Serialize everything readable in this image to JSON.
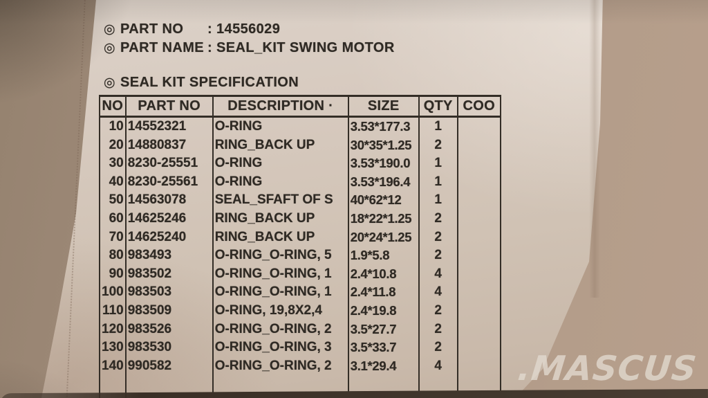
{
  "photo": {
    "watermark": ".MASCUS",
    "colors": {
      "backdrop": "#ab9584",
      "backdrop_dark_corner": "#6e5f52",
      "bag": "#d7cabf",
      "ink": "#2f2a24",
      "bottom_edge": "#3a2f26",
      "watermark_color": "#e1dacf"
    }
  },
  "label": {
    "part_no_field": {
      "bullet": "◎",
      "name": "PART NO",
      "colon": ":",
      "value": "14556029"
    },
    "part_name_field": {
      "bullet": "◎",
      "name": "PART NAME",
      "colon": ":",
      "value": "SEAL_KIT SWING MOTOR"
    },
    "section": {
      "bullet": "◎",
      "title": "SEAL KIT SPECIFICATION"
    },
    "table": {
      "headers": {
        "no": "NO",
        "part_no": "PART NO",
        "description": "DESCRIPTION ·",
        "size": "SIZE",
        "qty": "QTY",
        "coo": "COO"
      },
      "rows": [
        {
          "no": "10",
          "part_no": "14552321",
          "description": "O-RING",
          "size": "3.53*177.3",
          "qty": "1",
          "coo": ""
        },
        {
          "no": "20",
          "part_no": "14880837",
          "description": "RING_BACK UP",
          "size": "30*35*1.25",
          "qty": "2",
          "coo": ""
        },
        {
          "no": "30",
          "part_no": "8230-25551",
          "description": "O-RING",
          "size": "3.53*190.0",
          "qty": "1",
          "coo": ""
        },
        {
          "no": "40",
          "part_no": "8230-25561",
          "description": "O-RING",
          "size": "3.53*196.4",
          "qty": "1",
          "coo": ""
        },
        {
          "no": "50",
          "part_no": "14563078",
          "description": "SEAL_SFAFT OF S",
          "size": "40*62*12",
          "qty": "1",
          "coo": ""
        },
        {
          "no": "60",
          "part_no": "14625246",
          "description": "RING_BACK UP",
          "size": "18*22*1.25",
          "qty": "2",
          "coo": ""
        },
        {
          "no": "70",
          "part_no": "14625240",
          "description": "RING_BACK UP",
          "size": "20*24*1.25",
          "qty": "2",
          "coo": ""
        },
        {
          "no": "80",
          "part_no": "983493",
          "description": "O-RING_O-RING, 5",
          "size": "1.9*5.8",
          "qty": "2",
          "coo": ""
        },
        {
          "no": "90",
          "part_no": "983502",
          "description": "O-RING_O-RING, 1",
          "size": "2.4*10.8",
          "qty": "4",
          "coo": ""
        },
        {
          "no": "100",
          "part_no": "983503",
          "description": "O-RING_O-RING, 1",
          "size": "2.4*11.8",
          "qty": "4",
          "coo": ""
        },
        {
          "no": "110",
          "part_no": "983509",
          "description": "O-RING, 19,8X2,4",
          "size": "2.4*19.8",
          "qty": "2",
          "coo": ""
        },
        {
          "no": "120",
          "part_no": "983526",
          "description": "O-RING_O-RING, 2",
          "size": "3.5*27.7",
          "qty": "2",
          "coo": ""
        },
        {
          "no": "130",
          "part_no": "983530",
          "description": "O-RING_O-RING, 3",
          "size": "3.5*33.7",
          "qty": "2",
          "coo": ""
        },
        {
          "no": "140",
          "part_no": "990582",
          "description": "O-RING_O-RING, 2",
          "size": "3.1*29.4",
          "qty": "4",
          "coo": ""
        }
      ]
    }
  }
}
